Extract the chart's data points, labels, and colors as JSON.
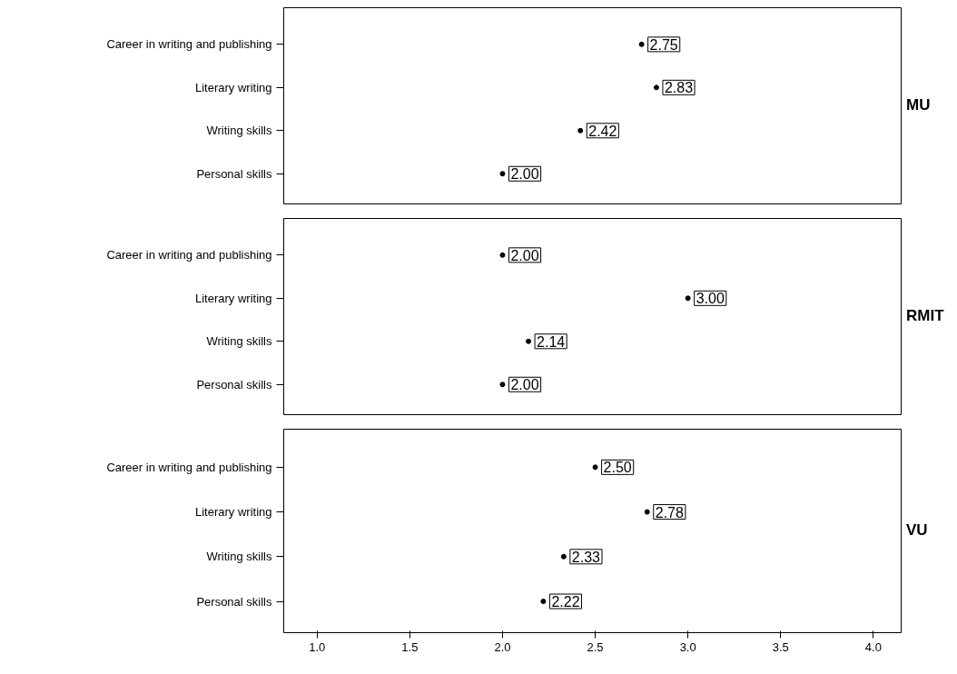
{
  "chart_data": [
    {
      "type": "scatter",
      "orientation": "horizontal",
      "title": "MU",
      "categories": [
        "Career in writing and publishing",
        "Literary writing",
        "Writing skills",
        "Personal skills"
      ],
      "values": [
        2.75,
        2.83,
        2.42,
        2.0
      ],
      "value_labels": [
        "2.75",
        "2.83",
        "2.42",
        "2.00"
      ],
      "color": "#000000",
      "marker": "circle",
      "xlim": [
        0.82,
        4.15
      ],
      "tick_labels": "y",
      "grid": false
    },
    {
      "type": "scatter",
      "orientation": "horizontal",
      "title": "RMIT",
      "categories": [
        "Career in writing and publishing",
        "Literary writing",
        "Writing skills",
        "Personal skills"
      ],
      "values": [
        2.0,
        3.0,
        2.14,
        2.0
      ],
      "value_labels": [
        "2.00",
        "3.00",
        "2.14",
        "2.00"
      ],
      "color": "#000000",
      "marker": "circle",
      "xlim": [
        0.82,
        4.15
      ],
      "tick_labels": "y",
      "grid": false
    },
    {
      "type": "scatter",
      "orientation": "horizontal",
      "title": "VU",
      "categories": [
        "Career in writing and publishing",
        "Literary writing",
        "Writing skills",
        "Personal skills"
      ],
      "values": [
        2.5,
        2.78,
        2.33,
        2.22
      ],
      "value_labels": [
        "2.50",
        "2.78",
        "2.33",
        "2.22"
      ],
      "color": "#000000",
      "marker": "circle",
      "xlim": [
        0.82,
        4.15
      ],
      "xticks": [
        {
          "value": 1.0,
          "label": "1.0"
        },
        {
          "value": 1.5,
          "label": "1.5"
        },
        {
          "value": 2.0,
          "label": "2.0"
        },
        {
          "value": 2.5,
          "label": "2.5"
        },
        {
          "value": 3.0,
          "label": "3.0"
        },
        {
          "value": 3.5,
          "label": "3.5"
        },
        {
          "value": 4.0,
          "label": "4.0"
        }
      ],
      "grid": false
    }
  ]
}
